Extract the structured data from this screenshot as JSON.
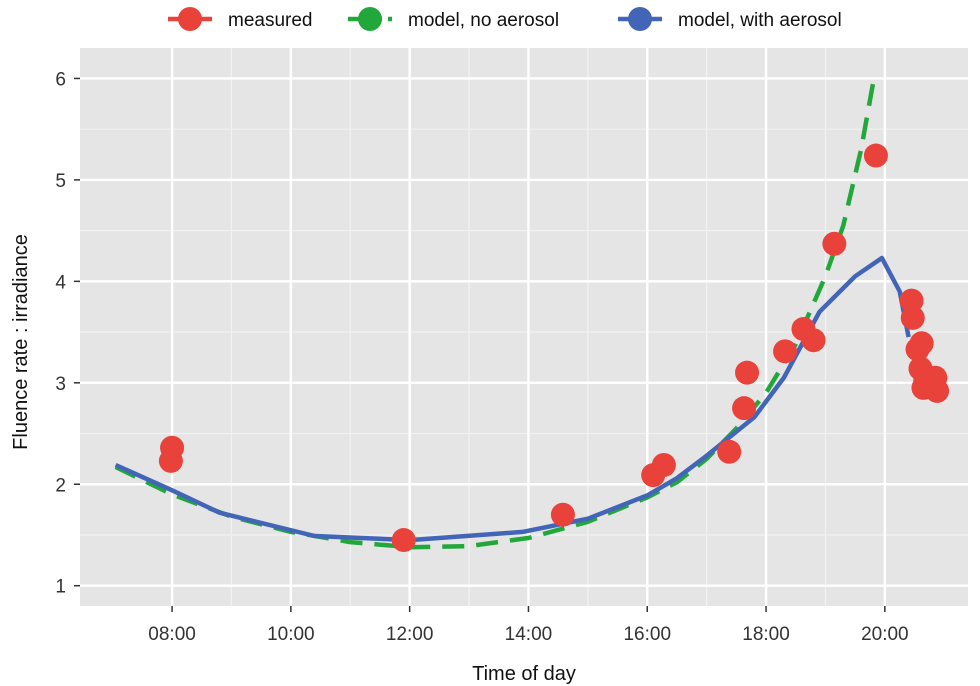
{
  "chart_data": {
    "type": "line",
    "title": "",
    "xlabel": "Time of day",
    "ylabel": "Fluence rate : irradiance",
    "x_unit": "hours",
    "xlim": [
      6.45,
      21.4
    ],
    "ylim": [
      0.8,
      6.3
    ],
    "x_ticks": [
      {
        "value": 8,
        "label": "08:00"
      },
      {
        "value": 10,
        "label": "10:00"
      },
      {
        "value": 12,
        "label": "12:00"
      },
      {
        "value": 14,
        "label": "14:00"
      },
      {
        "value": 16,
        "label": "16:00"
      },
      {
        "value": 18,
        "label": "18:00"
      },
      {
        "value": 20,
        "label": "20:00"
      }
    ],
    "y_ticks": [
      {
        "value": 1,
        "label": "1"
      },
      {
        "value": 2,
        "label": "2"
      },
      {
        "value": 3,
        "label": "3"
      },
      {
        "value": 4,
        "label": "4"
      },
      {
        "value": 5,
        "label": "5"
      },
      {
        "value": 6,
        "label": "6"
      }
    ],
    "grid": true,
    "legend_position": "top",
    "series": [
      {
        "name": "measured",
        "style": "points",
        "color": "#e8423a",
        "points": [
          [
            8.0,
            2.36
          ],
          [
            7.98,
            2.23
          ],
          [
            11.9,
            1.45
          ],
          [
            14.58,
            1.7
          ],
          [
            16.1,
            2.09
          ],
          [
            16.28,
            2.19
          ],
          [
            17.38,
            2.32
          ],
          [
            17.63,
            2.75
          ],
          [
            17.68,
            3.1
          ],
          [
            18.32,
            3.31
          ],
          [
            18.63,
            3.53
          ],
          [
            18.8,
            3.42
          ],
          [
            19.15,
            4.37
          ],
          [
            19.85,
            5.24
          ],
          [
            20.45,
            3.81
          ],
          [
            20.47,
            3.64
          ],
          [
            20.55,
            3.33
          ],
          [
            20.62,
            3.39
          ],
          [
            20.6,
            3.14
          ],
          [
            20.68,
            3.02
          ],
          [
            20.85,
            3.05
          ],
          [
            20.8,
            2.97
          ],
          [
            20.88,
            2.92
          ],
          [
            20.65,
            2.95
          ]
        ]
      },
      {
        "name": "model, no aerosol",
        "style": "dashed",
        "color": "#22a83a",
        "points": [
          [
            7.05,
            2.17
          ],
          [
            8.0,
            1.9
          ],
          [
            9.0,
            1.68
          ],
          [
            10.0,
            1.53
          ],
          [
            11.0,
            1.43
          ],
          [
            12.0,
            1.38
          ],
          [
            13.0,
            1.39
          ],
          [
            14.0,
            1.47
          ],
          [
            15.0,
            1.63
          ],
          [
            16.0,
            1.87
          ],
          [
            16.5,
            2.02
          ],
          [
            17.0,
            2.25
          ],
          [
            17.5,
            2.55
          ],
          [
            18.0,
            2.9
          ],
          [
            18.5,
            3.38
          ],
          [
            19.0,
            4.05
          ],
          [
            19.3,
            4.55
          ],
          [
            19.6,
            5.3
          ],
          [
            19.8,
            5.95
          ]
        ]
      },
      {
        "name": "model, with aerosol",
        "style": "solid",
        "color": "#4265b8",
        "points": [
          [
            7.05,
            2.19
          ],
          [
            8.0,
            1.94
          ],
          [
            8.8,
            1.72
          ],
          [
            10.4,
            1.49
          ],
          [
            12.0,
            1.45
          ],
          [
            13.9,
            1.53
          ],
          [
            15.0,
            1.66
          ],
          [
            16.0,
            1.89
          ],
          [
            16.5,
            2.06
          ],
          [
            17.0,
            2.28
          ],
          [
            17.8,
            2.66
          ],
          [
            18.3,
            3.05
          ],
          [
            18.9,
            3.7
          ],
          [
            19.5,
            4.05
          ],
          [
            19.95,
            4.23
          ],
          [
            20.25,
            3.9
          ],
          [
            20.4,
            3.45
          ]
        ]
      }
    ]
  }
}
